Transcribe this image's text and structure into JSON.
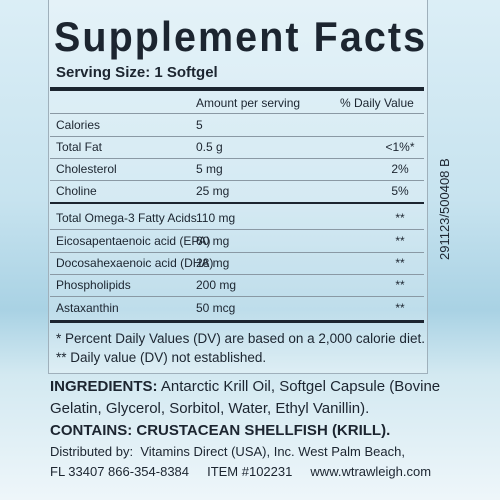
{
  "panel": {
    "title": "Supplement Facts",
    "serving_size": "Serving Size: 1 Softgel",
    "header": {
      "amount": "Amount per serving",
      "daily_value": "% Daily Value"
    },
    "rows": [
      {
        "name": "Calories",
        "amount": "5"
      },
      {
        "name": "Total Fat",
        "amount": "0.5 g",
        "daily_value": "<1%*"
      },
      {
        "name": "Cholesterol",
        "amount": "5 mg",
        "daily_value": "2%"
      },
      {
        "name": "Choline",
        "amount": "25 mg",
        "daily_value": "5%"
      },
      {
        "name": "Total Omega-3 Fatty Acids",
        "amount": "110 mg",
        "daily_value": "**"
      },
      {
        "name": "Eicosapentaenoic acid (EPA)",
        "amount": "60 mg",
        "daily_value": "**"
      },
      {
        "name": "Docosahexaenoic acid (DHA)",
        "amount": "28 mg",
        "daily_value": "**"
      },
      {
        "name": "Phospholipids",
        "amount": "200 mg",
        "daily_value": "**"
      },
      {
        "name": "Astaxanthin",
        "amount": "50 mcg",
        "daily_value": "**"
      }
    ],
    "footnotes": [
      "* Percent Daily Values (DV) are based on a 2,000 calorie diet.",
      "** Daily value (DV) not established."
    ]
  },
  "lot_code": "291123/500408 B",
  "ingredients": {
    "label": "INGREDIENTS:",
    "lines": [
      " Antarctic Krill Oil, Softgel Capsule (Bovine",
      "Gelatin, Glycerol, Sorbitol, Water, Ethyl Vanillin)."
    ]
  },
  "contains": "CONTAINS: CRUSTACEAN SHELLFISH (KRILL).",
  "distributor": [
    "Distributed by:  Vitamins Direct (USA), Inc. West Palm Beach,",
    "FL 33407 866-354-8384     ITEM #102231     www.wtrawleigh.com"
  ]
}
